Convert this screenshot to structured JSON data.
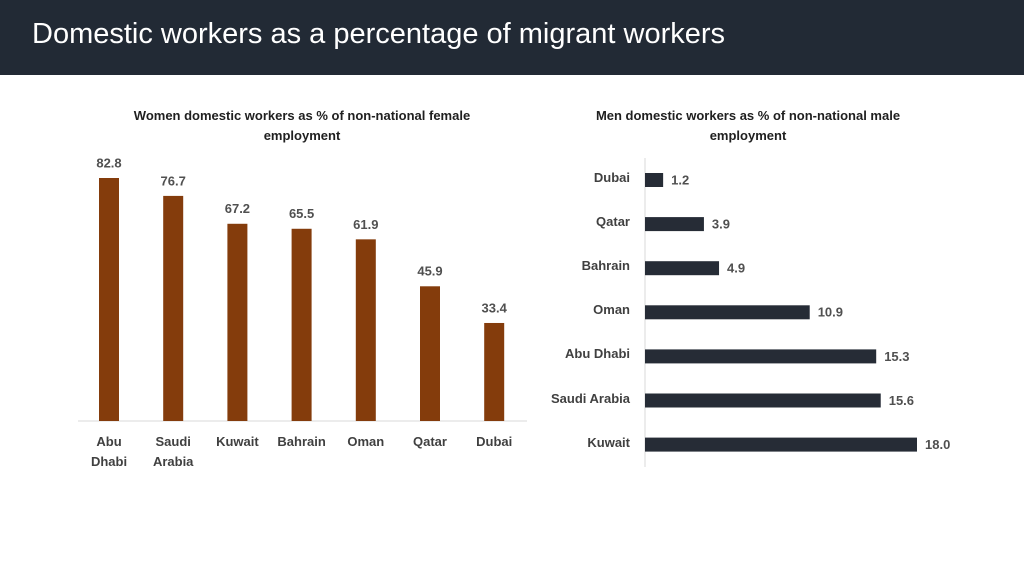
{
  "title": "Domestic workers as a percentage of migrant workers",
  "chart_data": [
    {
      "type": "bar",
      "title": "Women domestic workers as % of non-national female employment",
      "categories": [
        "Abu Dhabi",
        "Saudi Arabia",
        "Kuwait",
        "Bahrain",
        "Oman",
        "Qatar",
        "Dubai"
      ],
      "values": [
        82.8,
        76.7,
        67.2,
        65.5,
        61.9,
        45.9,
        33.4
      ],
      "color": "#843c0c"
    },
    {
      "type": "hbar",
      "title": "Men domestic workers as % of non-national male employment",
      "categories": [
        "Dubai",
        "Qatar",
        "Bahrain",
        "Oman",
        "Abu Dhabi",
        "Saudi Arabia",
        "Kuwait"
      ],
      "values": [
        1.2,
        3.9,
        4.9,
        10.9,
        15.3,
        15.6,
        18
      ],
      "value_labels": [
        "1.2",
        "3.9",
        "4.9",
        "10.9",
        "15.3",
        "15.6",
        "18.0"
      ],
      "color": "#262c36"
    }
  ]
}
